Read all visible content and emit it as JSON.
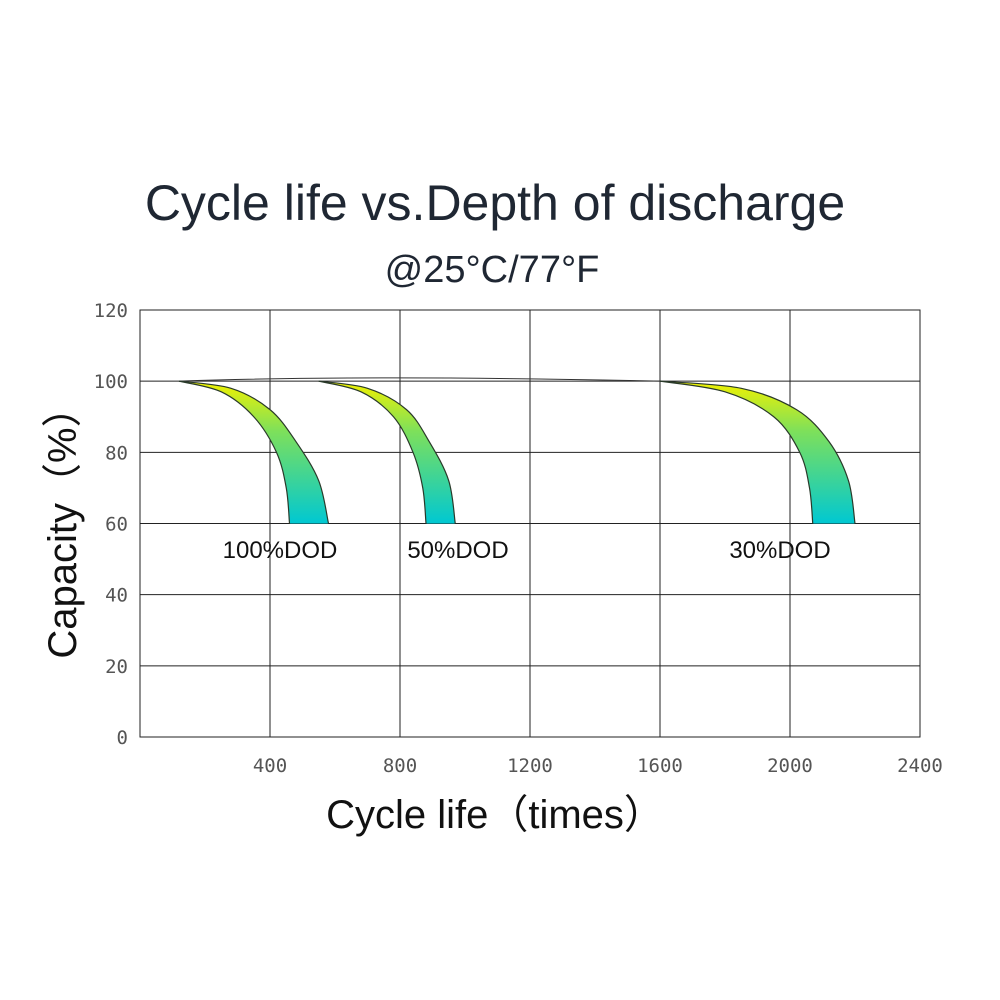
{
  "chart_data": {
    "type": "area",
    "title": "Cycle life vs.Depth of discharge",
    "subtitle": "@25°C/77°F",
    "xlabel": "Cycle life（times）",
    "ylabel": "Capacity（%）",
    "xlim": [
      0,
      2400
    ],
    "ylim": [
      0,
      120
    ],
    "x_ticks": [
      "400",
      "800",
      "1200",
      "1600",
      "2000",
      "2400"
    ],
    "y_ticks": [
      "0",
      "20",
      "40",
      "60",
      "80",
      "100",
      "120"
    ],
    "grid": true,
    "colors": {
      "gradient_top": "#f2f200",
      "gradient_mid": "#7ee05a",
      "gradient_bottom": "#00c8d2",
      "grid": "#222222"
    },
    "reference_line": {
      "x": [
        120,
        700,
        1600
      ],
      "y": [
        100,
        101,
        100
      ]
    },
    "series": [
      {
        "name": "100%DOD",
        "label": "100%DOD",
        "upper": {
          "x": [
            120,
            250,
            350,
            420,
            450,
            460
          ],
          "y": [
            100,
            97,
            90,
            80,
            70,
            60
          ]
        },
        "lower": {
          "x": [
            120,
            280,
            400,
            480,
            550,
            580
          ],
          "y": [
            100,
            98,
            92,
            83,
            72,
            60
          ]
        }
      },
      {
        "name": "50%DOD",
        "label": "50%DOD",
        "upper": {
          "x": [
            550,
            680,
            780,
            840,
            870,
            880
          ],
          "y": [
            100,
            97,
            90,
            80,
            70,
            60
          ]
        },
        "lower": {
          "x": [
            550,
            700,
            820,
            890,
            950,
            970
          ],
          "y": [
            100,
            98,
            92,
            83,
            72,
            60
          ]
        }
      },
      {
        "name": "30%DOD",
        "label": "30%DOD",
        "upper": {
          "x": [
            1600,
            1800,
            1950,
            2030,
            2060,
            2070
          ],
          "y": [
            100,
            97,
            90,
            80,
            70,
            60
          ]
        },
        "lower": {
          "x": [
            1600,
            1850,
            2020,
            2120,
            2180,
            2200
          ],
          "y": [
            100,
            98,
            92,
            83,
            72,
            60
          ]
        }
      }
    ]
  }
}
